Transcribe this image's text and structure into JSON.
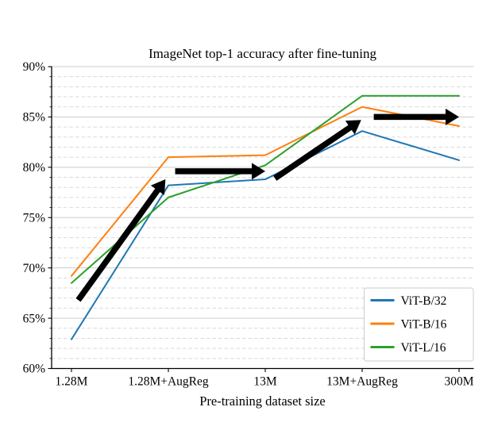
{
  "figure": {
    "background": "#ffffff"
  },
  "chart_data": {
    "type": "line",
    "title": "ImageNet top-1 accuracy after fine-tuning",
    "xlabel": "Pre-training dataset size",
    "ylabel": "",
    "categories": [
      "1.28M",
      "1.28M+AugReg",
      "13M",
      "13M+AugReg",
      "300M"
    ],
    "ylim": [
      60,
      90
    ],
    "y_major_step": 5,
    "y_minor_step": 1,
    "y_tick_labels": [
      "60%",
      "65%",
      "70%",
      "75%",
      "80%",
      "85%",
      "90%"
    ],
    "grid": {
      "major": "solid",
      "minor": "dashed",
      "major_color": "#cccccc",
      "minor_color": "#d9d9d9"
    },
    "legend_position": "lower right",
    "series": [
      {
        "name": "ViT-B/32",
        "color": "#1f77b4",
        "values": [
          62.9,
          78.2,
          78.8,
          83.6,
          80.7
        ]
      },
      {
        "name": "ViT-B/16",
        "color": "#ff7f0e",
        "values": [
          69.2,
          81.0,
          81.2,
          86.0,
          84.1
        ]
      },
      {
        "name": "ViT-L/16",
        "color": "#2ca02c",
        "values": [
          68.5,
          77.0,
          80.2,
          87.1,
          87.1
        ]
      }
    ],
    "annotations": [
      {
        "type": "arrow",
        "color": "#000000",
        "from": {
          "x": 0.07,
          "y": 66.8
        },
        "to": {
          "x": 0.97,
          "y": 78.8
        }
      },
      {
        "type": "arrow",
        "color": "#000000",
        "from": {
          "x": 1.07,
          "y": 79.6
        },
        "to": {
          "x": 2.0,
          "y": 79.6
        }
      },
      {
        "type": "arrow",
        "color": "#000000",
        "from": {
          "x": 2.1,
          "y": 78.9
        },
        "to": {
          "x": 2.99,
          "y": 84.7
        }
      },
      {
        "type": "arrow",
        "color": "#000000",
        "from": {
          "x": 3.12,
          "y": 85.0
        },
        "to": {
          "x": 4.0,
          "y": 85.0
        }
      }
    ]
  }
}
